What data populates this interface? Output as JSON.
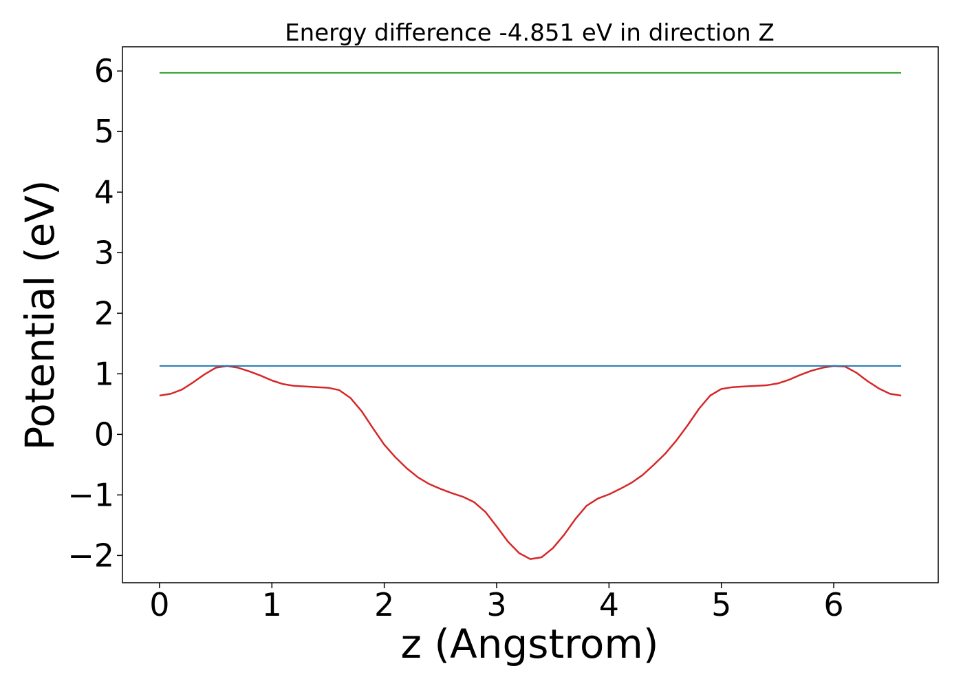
{
  "chart_data": {
    "type": "line",
    "title": "Energy difference -4.851 eV in direction Z",
    "xlabel": "z (Angstrom)",
    "ylabel": "Potential (eV)",
    "xlim": [
      -0.33,
      6.93
    ],
    "ylim": [
      -2.45,
      6.4
    ],
    "xticks": [
      0,
      1,
      2,
      3,
      4,
      5,
      6
    ],
    "yticks": [
      -2,
      -1,
      0,
      1,
      2,
      3,
      4,
      5,
      6
    ],
    "xtick_labels": [
      "0",
      "1",
      "2",
      "3",
      "4",
      "5",
      "6"
    ],
    "ytick_labels": [
      "−2",
      "−1",
      "0",
      "1",
      "2",
      "3",
      "4",
      "5",
      "6"
    ],
    "grid": false,
    "series": [
      {
        "color": "#d62728",
        "x": [
          0.0,
          0.1,
          0.2,
          0.3,
          0.4,
          0.5,
          0.6,
          0.7,
          0.8,
          0.9,
          1.0,
          1.1,
          1.2,
          1.3,
          1.4,
          1.5,
          1.6,
          1.7,
          1.8,
          1.9,
          2.0,
          2.1,
          2.2,
          2.3,
          2.4,
          2.5,
          2.6,
          2.7,
          2.8,
          2.9,
          3.0,
          3.1,
          3.2,
          3.3,
          3.4,
          3.5,
          3.6,
          3.7,
          3.8,
          3.9,
          4.0,
          4.1,
          4.2,
          4.3,
          4.4,
          4.5,
          4.6,
          4.7,
          4.8,
          4.9,
          5.0,
          5.1,
          5.2,
          5.3,
          5.4,
          5.5,
          5.6,
          5.7,
          5.8,
          5.9,
          6.0,
          6.1,
          6.2,
          6.3,
          6.4,
          6.5,
          6.6
        ],
        "y": [
          0.64,
          0.67,
          0.74,
          0.86,
          0.99,
          1.1,
          1.13,
          1.1,
          1.04,
          0.97,
          0.89,
          0.83,
          0.8,
          0.79,
          0.78,
          0.77,
          0.73,
          0.6,
          0.38,
          0.1,
          -0.17,
          -0.38,
          -0.56,
          -0.71,
          -0.82,
          -0.9,
          -0.97,
          -1.03,
          -1.12,
          -1.28,
          -1.52,
          -1.77,
          -1.96,
          -2.06,
          -2.03,
          -1.88,
          -1.66,
          -1.4,
          -1.18,
          -1.06,
          -0.99,
          -0.9,
          -0.8,
          -0.67,
          -0.5,
          -0.32,
          -0.1,
          0.15,
          0.42,
          0.64,
          0.75,
          0.78,
          0.79,
          0.8,
          0.81,
          0.84,
          0.9,
          0.98,
          1.05,
          1.1,
          1.13,
          1.12,
          1.02,
          0.88,
          0.76,
          0.67,
          0.64
        ]
      },
      {
        "color": "#1f77b4",
        "x": [
          0.0,
          6.6
        ],
        "y": [
          1.13,
          1.13
        ]
      },
      {
        "color": "#2ca02c",
        "x": [
          0.0,
          6.6
        ],
        "y": [
          5.97,
          5.97
        ]
      }
    ]
  }
}
